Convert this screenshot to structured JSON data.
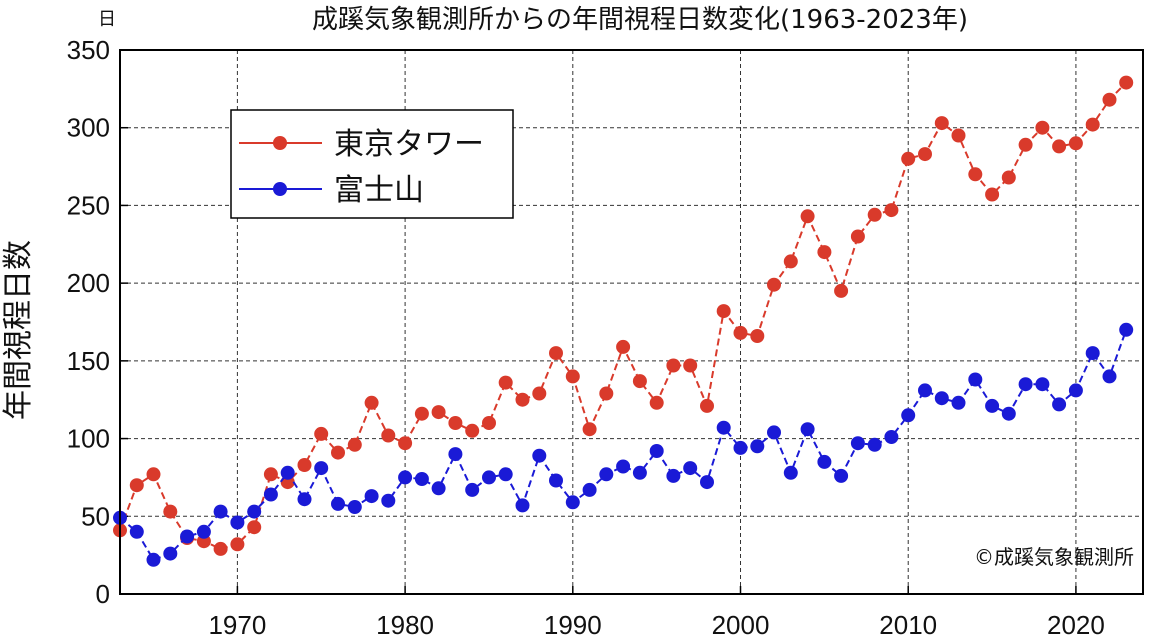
{
  "chart_data": {
    "type": "line",
    "title": "成蹊気象観測所からの年間視程日数変化(1963-2023年)",
    "ylabel": "年間視程日数",
    "yunit": "日",
    "credit": "©成蹊気象観測所",
    "xlim": [
      1963,
      2024
    ],
    "ylim": [
      0,
      350
    ],
    "xticks": [
      1970,
      1980,
      1990,
      2000,
      2010,
      2020
    ],
    "yticks": [
      0,
      50,
      100,
      150,
      200,
      250,
      300,
      350
    ],
    "grid": true,
    "legend_position": "top-left",
    "x": [
      1963,
      1964,
      1965,
      1966,
      1967,
      1968,
      1969,
      1970,
      1971,
      1972,
      1973,
      1974,
      1975,
      1976,
      1977,
      1978,
      1979,
      1980,
      1981,
      1982,
      1983,
      1984,
      1985,
      1986,
      1987,
      1988,
      1989,
      1990,
      1991,
      1992,
      1993,
      1994,
      1995,
      1996,
      1997,
      1998,
      1999,
      2000,
      2001,
      2002,
      2003,
      2004,
      2005,
      2006,
      2007,
      2008,
      2009,
      2010,
      2011,
      2012,
      2013,
      2014,
      2015,
      2016,
      2017,
      2018,
      2019,
      2020,
      2021,
      2022,
      2023
    ],
    "series": [
      {
        "name": "東京タワー",
        "color": "#d93a2b",
        "values": [
          41,
          70,
          77,
          53,
          36,
          34,
          29,
          32,
          43,
          77,
          72,
          83,
          103,
          91,
          96,
          123,
          102,
          97,
          116,
          117,
          110,
          105,
          110,
          136,
          125,
          129,
          155,
          140,
          106,
          129,
          159,
          137,
          123,
          147,
          147,
          121,
          182,
          168,
          166,
          199,
          214,
          243,
          220,
          195,
          230,
          244,
          247,
          280,
          283,
          303,
          295,
          270,
          257,
          268,
          289,
          300,
          288,
          290,
          302,
          318,
          329
        ]
      },
      {
        "name": "富士山",
        "color": "#1a1ad6",
        "values": [
          49,
          40,
          22,
          26,
          37,
          40,
          53,
          46,
          53,
          64,
          78,
          61,
          81,
          58,
          56,
          63,
          60,
          75,
          74,
          68,
          90,
          67,
          75,
          77,
          57,
          89,
          73,
          59,
          67,
          77,
          82,
          78,
          92,
          76,
          81,
          72,
          107,
          94,
          95,
          104,
          78,
          106,
          85,
          76,
          97,
          96,
          101,
          115,
          131,
          126,
          123,
          138,
          121,
          116,
          135,
          135,
          122,
          131,
          155,
          140,
          170
        ]
      }
    ]
  }
}
